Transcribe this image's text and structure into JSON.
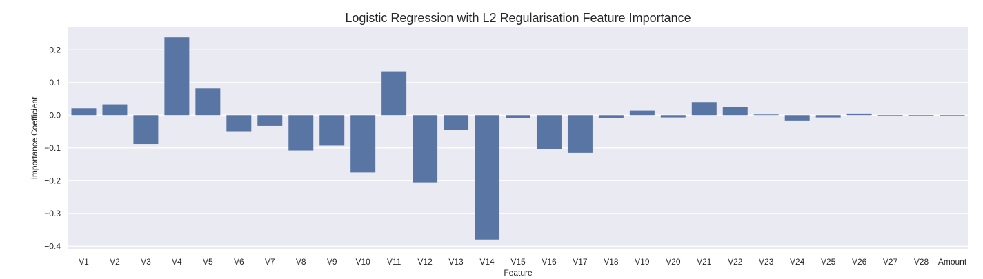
{
  "chart_data": {
    "type": "bar",
    "title": "Logistic Regression with L2 Regularisation Feature Importance",
    "xlabel": "Feature",
    "ylabel": "Importance Coefficient",
    "ylim": [
      -0.41,
      0.27
    ],
    "yticks": [
      0.2,
      0.1,
      0.0,
      -0.1,
      -0.2,
      -0.3,
      -0.4
    ],
    "ytick_labels": [
      "0.2",
      "0.1",
      "0.0",
      "−0.1",
      "−0.2",
      "−0.3",
      "−0.4"
    ],
    "grid": true,
    "categories": [
      "V1",
      "V2",
      "V3",
      "V4",
      "V5",
      "V6",
      "V7",
      "V8",
      "V9",
      "V10",
      "V11",
      "V12",
      "V13",
      "V14",
      "V15",
      "V16",
      "V17",
      "V18",
      "V19",
      "V20",
      "V21",
      "V22",
      "V23",
      "V24",
      "V25",
      "V26",
      "V27",
      "V28",
      "Amount"
    ],
    "values": [
      0.021,
      0.033,
      -0.088,
      0.238,
      0.082,
      -0.049,
      -0.033,
      -0.108,
      -0.093,
      -0.175,
      0.134,
      -0.205,
      -0.044,
      -0.38,
      -0.01,
      -0.104,
      -0.115,
      -0.008,
      0.014,
      -0.007,
      0.04,
      0.024,
      0.002,
      -0.016,
      -0.007,
      0.005,
      -0.003,
      -0.001,
      0.0
    ],
    "colors": {
      "bar": "#5875a4",
      "background": "#eaeaf2",
      "grid": "#ffffff",
      "text": "#262626"
    }
  }
}
